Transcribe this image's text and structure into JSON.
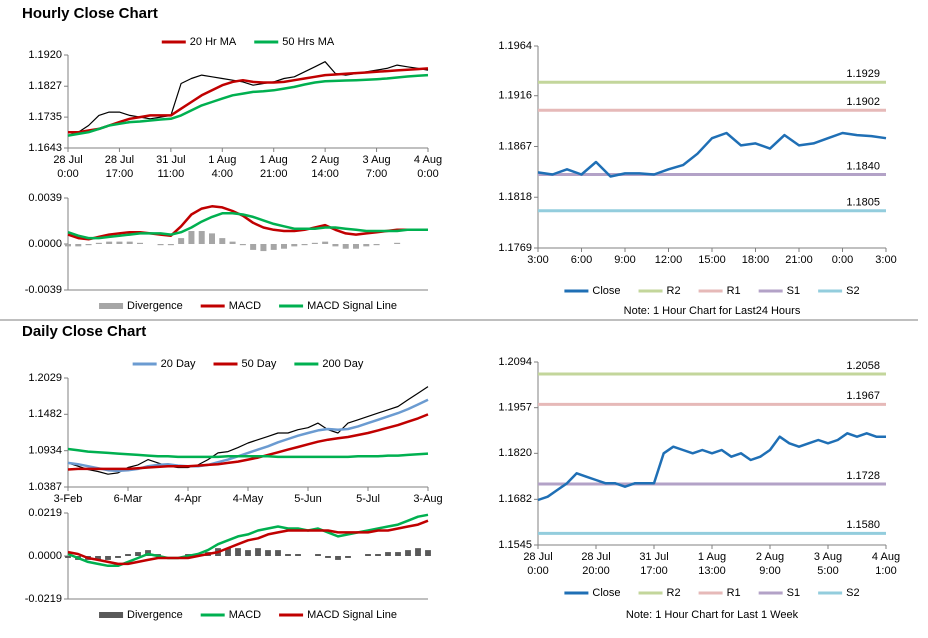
{
  "sections": [
    {
      "title": "Hourly Close Chart"
    },
    {
      "title": "Daily Close Chart"
    }
  ],
  "chart_data": [
    {
      "type": "line",
      "legend": "top",
      "xlim": [
        0,
        35
      ],
      "xticks": [
        {
          "value": 0,
          "label": [
            "28 Jul",
            "0:00"
          ]
        },
        {
          "value": 5,
          "label": [
            "28 Jul",
            "17:00"
          ]
        },
        {
          "value": 10,
          "label": [
            "31 Jul",
            "11:00"
          ]
        },
        {
          "value": 15,
          "label": [
            "1 Aug",
            "4:00"
          ]
        },
        {
          "value": 20,
          "label": [
            "1 Aug",
            "21:00"
          ]
        },
        {
          "value": 25,
          "label": [
            "2 Aug",
            "14:00"
          ]
        },
        {
          "value": 30,
          "label": [
            "3 Aug",
            "7:00"
          ]
        },
        {
          "value": 35,
          "label": [
            "4 Aug",
            "0:00"
          ]
        }
      ],
      "ylim": [
        1.1643,
        1.192
      ],
      "yticks": [
        1.1643,
        1.1735,
        1.1827,
        {
          "value": 1.192,
          "label": "1.1920"
        }
      ],
      "series": [
        {
          "color": "#000000",
          "values": [
            1.168,
            1.169,
            1.171,
            1.174,
            1.175,
            1.175,
            1.174,
            1.1735,
            1.173,
            1.1735,
            1.174,
            1.1835,
            1.185,
            1.186,
            1.1855,
            1.185,
            1.1845,
            1.184,
            1.183,
            1.1835,
            1.184,
            1.185,
            1.1855,
            1.187,
            1.1885,
            1.19,
            1.1865,
            1.186,
            1.1865,
            1.187,
            1.1875,
            1.188,
            1.189,
            1.1885,
            1.188,
            1.1875
          ]
        },
        {
          "name": "20 Hr MA",
          "color": "#c00000",
          "values": [
            1.169,
            1.169,
            1.1695,
            1.17,
            1.171,
            1.172,
            1.173,
            1.1735,
            1.174,
            1.174,
            1.174,
            1.176,
            1.178,
            1.18,
            1.1815,
            1.183,
            1.184,
            1.1845,
            1.184,
            1.1838,
            1.1838,
            1.184,
            1.1845,
            1.185,
            1.1855,
            1.186,
            1.1862,
            1.1864,
            1.1866,
            1.1868,
            1.187,
            1.1872,
            1.1874,
            1.1876,
            1.1878,
            1.188
          ]
        },
        {
          "name": "50 Hrs MA",
          "color": "#00b050",
          "values": [
            1.168,
            1.1685,
            1.169,
            1.17,
            1.171,
            1.1715,
            1.172,
            1.1722,
            1.1725,
            1.1728,
            1.173,
            1.174,
            1.1755,
            1.177,
            1.178,
            1.179,
            1.18,
            1.1805,
            1.181,
            1.1812,
            1.1815,
            1.182,
            1.1825,
            1.1832,
            1.1838,
            1.1842,
            1.1843,
            1.1844,
            1.1845,
            1.1846,
            1.1848,
            1.185,
            1.1853,
            1.1856,
            1.1858,
            1.186
          ]
        }
      ]
    },
    {
      "type": "combo",
      "legend": "bottom",
      "xlim": [
        0,
        35
      ],
      "ylim": [
        -0.0039,
        0.0039
      ],
      "yticks": [
        -0.0039,
        {
          "value": 0,
          "label": "0.0000"
        },
        0.0039
      ],
      "series": [
        {
          "name": "Divergence",
          "style": "bar",
          "color": "#a6a6a6",
          "values": [
            -0.0002,
            -0.0002,
            -0.0001,
            0.0001,
            0.0002,
            0.0002,
            0.0002,
            0.0001,
            0,
            -0.0001,
            -0.0001,
            0.0005,
            0.0011,
            0.0011,
            0.0009,
            0.0005,
            0.0002,
            -0.0001,
            -0.0005,
            -0.0006,
            -0.0005,
            -0.0004,
            -0.0002,
            -0.0001,
            0.0001,
            0.0002,
            -0.0002,
            -0.0004,
            -0.0004,
            -0.0002,
            -0.0001,
            0,
            0.0001,
            0,
            0,
            0
          ]
        },
        {
          "name": "MACD",
          "color": "#c00000",
          "values": [
            0.0008,
            0.0005,
            0.0004,
            0.0006,
            0.0008,
            0.0009,
            0.001,
            0.001,
            0.0009,
            0.0008,
            0.0007,
            0.0015,
            0.0025,
            0.003,
            0.0032,
            0.0031,
            0.0028,
            0.0024,
            0.0018,
            0.0014,
            0.0012,
            0.0011,
            0.0011,
            0.0012,
            0.0014,
            0.0016,
            0.0012,
            0.0009,
            0.0008,
            0.0009,
            0.001,
            0.0011,
            0.0012,
            0.0012,
            0.0012,
            0.0012
          ]
        },
        {
          "name": "MACD Signal Line",
          "color": "#00b050",
          "values": [
            0.001,
            0.0007,
            0.0005,
            0.0005,
            0.0006,
            0.0007,
            0.0008,
            0.0009,
            0.0009,
            0.0009,
            0.0008,
            0.001,
            0.0014,
            0.0019,
            0.0023,
            0.0026,
            0.0026,
            0.0025,
            0.0023,
            0.002,
            0.0017,
            0.0015,
            0.0013,
            0.0013,
            0.0013,
            0.0014,
            0.0014,
            0.0013,
            0.0012,
            0.0011,
            0.0011,
            0.0011,
            0.0011,
            0.0012,
            0.0012,
            0.0012
          ]
        }
      ]
    },
    {
      "type": "line",
      "legend": "bottom",
      "note": "Note: 1 Hour Chart for Last24 Hours",
      "xlim": [
        0,
        24
      ],
      "xticks": [
        {
          "value": 0,
          "label": "3:00"
        },
        {
          "value": 3,
          "label": "6:00"
        },
        {
          "value": 6,
          "label": "9:00"
        },
        {
          "value": 9,
          "label": "12:00"
        },
        {
          "value": 12,
          "label": "15:00"
        },
        {
          "value": 15,
          "label": "18:00"
        },
        {
          "value": 18,
          "label": "21:00"
        },
        {
          "value": 21,
          "label": "0:00"
        },
        {
          "value": 24,
          "label": "3:00"
        }
      ],
      "ylim": [
        1.1769,
        1.1964
      ],
      "yticks": [
        1.1769,
        1.1818,
        1.1867,
        1.1916,
        1.1964
      ],
      "series": [
        {
          "name": "Close",
          "color": "#1f6fb5",
          "values": [
            1.1842,
            1.184,
            1.1845,
            1.184,
            1.1852,
            1.1838,
            1.1841,
            1.1841,
            1.184,
            1.1845,
            1.1849,
            1.186,
            1.1875,
            1.188,
            1.1868,
            1.187,
            1.1865,
            1.1878,
            1.1868,
            1.187,
            1.1875,
            1.188,
            1.1878,
            1.1877,
            1.1875
          ]
        }
      ],
      "levels": [
        {
          "name": "R2",
          "color": "#c3d69b",
          "value": 1.1929,
          "label": "1.1929"
        },
        {
          "name": "R1",
          "color": "#e6b9b8",
          "value": 1.1902,
          "label": "1.1902"
        },
        {
          "name": "S1",
          "color": "#b3a2c7",
          "value": 1.184,
          "label": "1.1840"
        },
        {
          "name": "S2",
          "color": "#93cddd",
          "value": 1.1805,
          "label": "1.1805"
        }
      ]
    },
    {
      "type": "line",
      "legend": "top",
      "xlim": [
        0,
        36
      ],
      "xticks": [
        {
          "value": 0,
          "label": "3-Feb"
        },
        {
          "value": 6,
          "label": "6-Mar"
        },
        {
          "value": 12,
          "label": "4-Apr"
        },
        {
          "value": 18,
          "label": "4-May"
        },
        {
          "value": 24,
          "label": "5-Jun"
        },
        {
          "value": 30,
          "label": "5-Jul"
        },
        {
          "value": 36,
          "label": "3-Aug"
        }
      ],
      "ylim": [
        1.0387,
        1.2029
      ],
      "yticks": [
        1.0387,
        1.0934,
        1.1482,
        1.2029
      ],
      "series": [
        {
          "color": "#000000",
          "values": [
            1.075,
            1.07,
            1.065,
            1.062,
            1.058,
            1.06,
            1.068,
            1.072,
            1.08,
            1.075,
            1.07,
            1.068,
            1.068,
            1.072,
            1.08,
            1.09,
            1.092,
            1.098,
            1.105,
            1.11,
            1.115,
            1.12,
            1.12,
            1.125,
            1.128,
            1.135,
            1.125,
            1.12,
            1.135,
            1.14,
            1.145,
            1.15,
            1.155,
            1.16,
            1.17,
            1.18,
            1.19
          ]
        },
        {
          "name": "20 Day",
          "color": "#6b9bd1",
          "values": [
            1.075,
            1.073,
            1.07,
            1.067,
            1.064,
            1.063,
            1.064,
            1.066,
            1.07,
            1.072,
            1.073,
            1.071,
            1.07,
            1.07,
            1.072,
            1.076,
            1.08,
            1.085,
            1.09,
            1.095,
            1.1,
            1.106,
            1.111,
            1.116,
            1.12,
            1.124,
            1.126,
            1.125,
            1.126,
            1.13,
            1.135,
            1.14,
            1.145,
            1.15,
            1.156,
            1.163,
            1.17
          ]
        },
        {
          "name": "50 Day",
          "color": "#c00000",
          "values": [
            1.065,
            1.066,
            1.066,
            1.066,
            1.066,
            1.066,
            1.066,
            1.067,
            1.068,
            1.069,
            1.07,
            1.07,
            1.07,
            1.071,
            1.072,
            1.073,
            1.075,
            1.077,
            1.08,
            1.083,
            1.087,
            1.091,
            1.095,
            1.099,
            1.103,
            1.107,
            1.11,
            1.112,
            1.114,
            1.117,
            1.12,
            1.124,
            1.128,
            1.132,
            1.137,
            1.142,
            1.148
          ]
        },
        {
          "name": "200 Day",
          "color": "#00b050",
          "values": [
            1.096,
            1.094,
            1.092,
            1.091,
            1.09,
            1.089,
            1.088,
            1.087,
            1.086,
            1.085,
            1.085,
            1.084,
            1.084,
            1.084,
            1.084,
            1.084,
            1.085,
            1.085,
            1.085,
            1.085,
            1.085,
            1.084,
            1.084,
            1.084,
            1.084,
            1.084,
            1.084,
            1.084,
            1.084,
            1.085,
            1.085,
            1.085,
            1.086,
            1.086,
            1.087,
            1.088,
            1.089
          ]
        }
      ]
    },
    {
      "type": "combo",
      "legend": "bottom",
      "xlim": [
        0,
        36
      ],
      "ylim": [
        -0.0219,
        0.0219
      ],
      "yticks": [
        -0.0219,
        {
          "value": 0,
          "label": "0.0000"
        },
        0.0219
      ],
      "series": [
        {
          "name": "Divergence",
          "style": "bar",
          "color": "#595959",
          "values": [
            -0.001,
            -0.002,
            -0.002,
            -0.002,
            -0.002,
            -0.001,
            0.001,
            0.002,
            0.003,
            0.001,
            0,
            0,
            0.001,
            0.001,
            0.002,
            0.004,
            0.004,
            0.004,
            0.003,
            0.004,
            0.003,
            0.003,
            0.001,
            0.001,
            0,
            0.001,
            -0.001,
            -0.002,
            -0.001,
            0,
            0.001,
            0.001,
            0.002,
            0.002,
            0.003,
            0.004,
            0.003
          ]
        },
        {
          "name": "MACD",
          "color": "#00b050",
          "values": [
            0.001,
            -0.001,
            -0.003,
            -0.004,
            -0.005,
            -0.005,
            -0.003,
            -0.001,
            0.001,
            0,
            -0.001,
            -0.001,
            0,
            0.001,
            0.003,
            0.006,
            0.008,
            0.01,
            0.011,
            0.013,
            0.014,
            0.015,
            0.014,
            0.014,
            0.013,
            0.014,
            0.012,
            0.01,
            0.011,
            0.012,
            0.013,
            0.014,
            0.015,
            0.016,
            0.018,
            0.02,
            0.021
          ]
        },
        {
          "name": "MACD Signal Line",
          "color": "#c00000",
          "values": [
            0.002,
            0.001,
            -0.001,
            -0.002,
            -0.003,
            -0.004,
            -0.004,
            -0.003,
            -0.002,
            -0.001,
            -0.001,
            -0.001,
            -0.001,
            0,
            0.001,
            0.002,
            0.004,
            0.006,
            0.008,
            0.009,
            0.011,
            0.012,
            0.013,
            0.013,
            0.013,
            0.013,
            0.013,
            0.012,
            0.012,
            0.012,
            0.012,
            0.013,
            0.013,
            0.014,
            0.015,
            0.016,
            0.018
          ]
        }
      ]
    },
    {
      "type": "line",
      "legend": "bottom",
      "note": "Note: 1 Hour Chart for Last 1 Week",
      "xlim": [
        0,
        36
      ],
      "xticks": [
        {
          "value": 0,
          "label": [
            "28 Jul",
            "0:00"
          ]
        },
        {
          "value": 6,
          "label": [
            "28 Jul",
            "20:00"
          ]
        },
        {
          "value": 12,
          "label": [
            "31 Jul",
            "17:00"
          ]
        },
        {
          "value": 18,
          "label": [
            "1 Aug",
            "13:00"
          ]
        },
        {
          "value": 24,
          "label": [
            "2 Aug",
            "9:00"
          ]
        },
        {
          "value": 30,
          "label": [
            "3 Aug",
            "5:00"
          ]
        },
        {
          "value": 36,
          "label": [
            "4 Aug",
            "1:00"
          ]
        }
      ],
      "ylim": [
        1.1545,
        1.2094
      ],
      "yticks": [
        1.1545,
        1.1682,
        {
          "value": 1.182,
          "label": "1.1820"
        },
        1.1957,
        1.2094
      ],
      "series": [
        {
          "name": "Close",
          "color": "#1f6fb5",
          "values": [
            1.168,
            1.169,
            1.171,
            1.173,
            1.176,
            1.175,
            1.174,
            1.173,
            1.173,
            1.172,
            1.173,
            1.173,
            1.173,
            1.182,
            1.184,
            1.183,
            1.182,
            1.183,
            1.182,
            1.183,
            1.181,
            1.182,
            1.18,
            1.181,
            1.183,
            1.187,
            1.185,
            1.184,
            1.185,
            1.186,
            1.185,
            1.186,
            1.188,
            1.187,
            1.188,
            1.187,
            1.187
          ]
        }
      ],
      "levels": [
        {
          "name": "R2",
          "color": "#c3d69b",
          "value": 1.2058,
          "label": "1.2058"
        },
        {
          "name": "R1",
          "color": "#e6b9b8",
          "value": 1.1967,
          "label": "1.1967"
        },
        {
          "name": "S1",
          "color": "#b3a2c7",
          "value": 1.1728,
          "label": "1.1728"
        },
        {
          "name": "S2",
          "color": "#93cddd",
          "value": 1.158,
          "label": "1.1580"
        }
      ]
    }
  ]
}
